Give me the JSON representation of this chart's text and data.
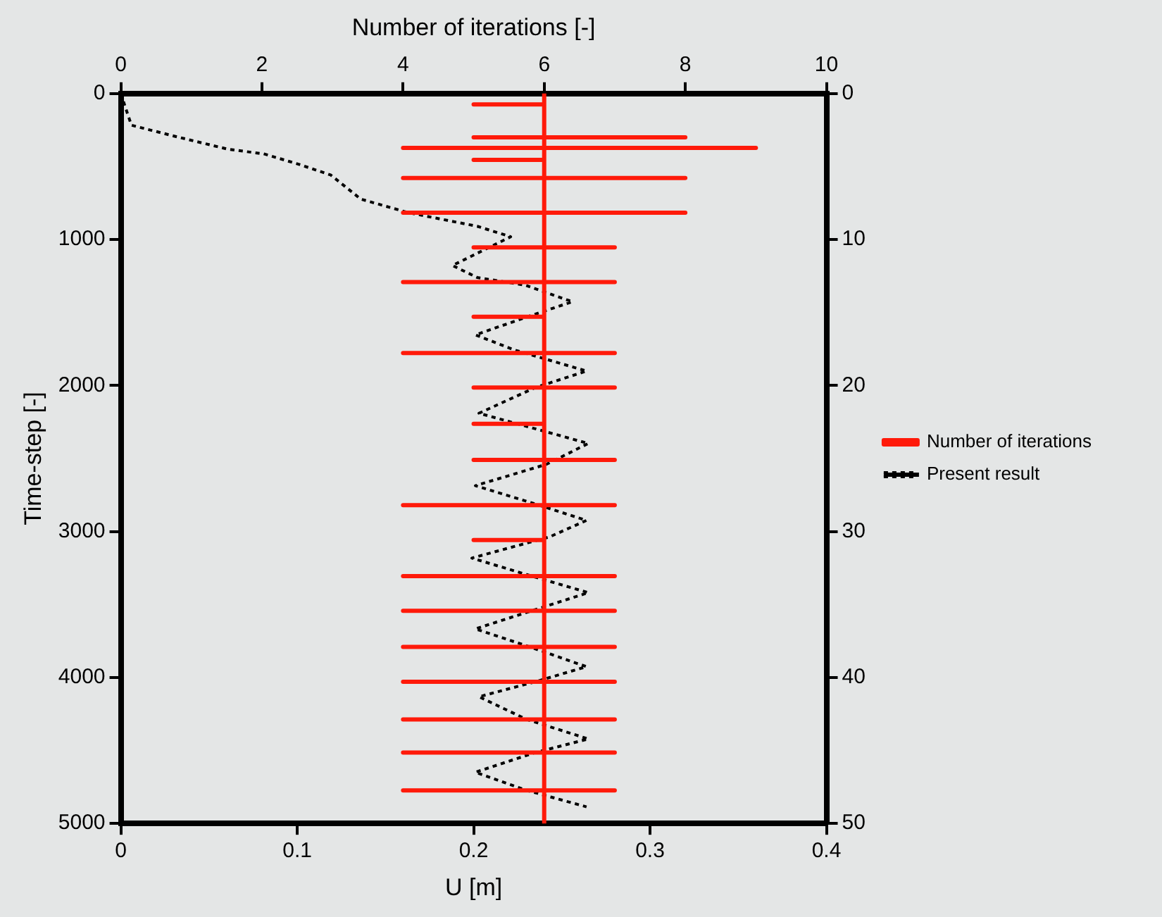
{
  "chart_data": {
    "type": "line",
    "orientation": "horizontal",
    "xlabel": "U [m]",
    "x2label": "Number of iterations [-]",
    "ylabel": "Time-step [-]",
    "xlim": [
      0,
      0.4
    ],
    "xticks": [
      0,
      0.1,
      0.2,
      0.3,
      0.4
    ],
    "x2lim": [
      0,
      10
    ],
    "x2ticks": [
      0,
      2,
      4,
      6,
      8,
      10
    ],
    "ylim": [
      5000,
      0
    ],
    "yticks": [
      0,
      1000,
      2000,
      3000,
      4000,
      5000
    ],
    "y2lim": [
      50,
      0
    ],
    "y2ticks": [
      0,
      10,
      20,
      30,
      40,
      50
    ],
    "legend": "right",
    "marker": "none",
    "series": [
      {
        "name": "Number of iterations",
        "color": "#ff1a0a",
        "axis": "x2",
        "line_style": "solid",
        "x": [
          0,
          74,
          74,
          74,
          300,
          300,
          300,
          300,
          372,
          372,
          372,
          372,
          455,
          455,
          455,
          579,
          579,
          579,
          579,
          816,
          816,
          816,
          816,
          1054,
          1054,
          1054,
          1054,
          1291,
          1291,
          1291,
          1291,
          1529,
          1529,
          1529,
          1777,
          1777,
          1777,
          1777,
          2014,
          2014,
          2014,
          2014,
          2262,
          2262,
          2262,
          2510,
          2510,
          2510,
          2510,
          2820,
          2820,
          2820,
          2820,
          3058,
          3058,
          3058,
          3306,
          3306,
          3306,
          3306,
          3543,
          3543,
          3543,
          3543,
          3791,
          3791,
          3791,
          3791,
          4029,
          4029,
          4029,
          4029,
          4287,
          4287,
          4287,
          4287,
          4514,
          4514,
          4514,
          4514,
          4773,
          4773,
          4773,
          4773,
          5000
        ],
        "values": [
          6,
          6,
          5,
          6,
          6,
          5,
          8,
          6,
          6,
          4,
          9,
          6,
          6,
          5,
          6,
          6,
          4,
          8,
          6,
          6,
          4,
          8,
          6,
          6,
          5,
          7,
          6,
          6,
          4,
          7,
          6,
          6,
          5,
          6,
          6,
          4,
          7,
          6,
          6,
          5,
          7,
          6,
          6,
          5,
          6,
          6,
          5,
          7,
          6,
          6,
          4,
          7,
          6,
          6,
          5,
          6,
          6,
          4,
          7,
          6,
          6,
          4,
          7,
          6,
          6,
          4,
          7,
          6,
          6,
          4,
          7,
          6,
          6,
          4,
          7,
          6,
          6,
          4,
          7,
          6,
          6,
          4,
          7,
          6,
          6
        ]
      },
      {
        "name": "Present result",
        "color": "#000000",
        "line_style": "dotted",
        "x": [
          0,
          217,
          300,
          382,
          413,
          485,
          558,
          723,
          816,
          909,
          981,
          1178,
          1260,
          1312,
          1426,
          1519,
          1653,
          1756,
          1901,
          2014,
          2190,
          2273,
          2397,
          2541,
          2686,
          2800,
          2924,
          3037,
          3182,
          3295,
          3419,
          3543,
          3667,
          3791,
          3926,
          4029,
          4132,
          4287,
          4421,
          4514,
          4649,
          4773,
          4886
        ],
        "values": [
          0,
          0.006,
          0.033,
          0.061,
          0.081,
          0.101,
          0.119,
          0.136,
          0.163,
          0.202,
          0.221,
          0.188,
          0.202,
          0.229,
          0.256,
          0.233,
          0.201,
          0.223,
          0.264,
          0.235,
          0.203,
          0.228,
          0.265,
          0.241,
          0.201,
          0.232,
          0.264,
          0.243,
          0.199,
          0.23,
          0.265,
          0.233,
          0.201,
          0.232,
          0.264,
          0.235,
          0.203,
          0.23,
          0.265,
          0.235,
          0.201,
          0.23,
          0.264
        ]
      }
    ]
  }
}
